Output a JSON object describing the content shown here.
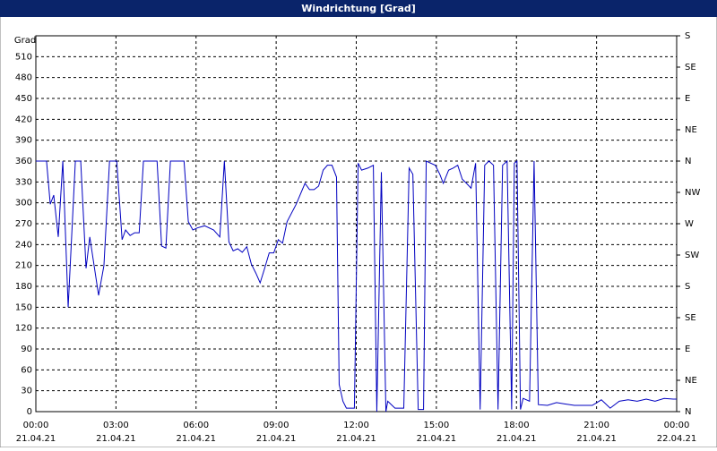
{
  "chart_data": {
    "type": "line",
    "title": "Windrichtung [Grad]",
    "y_label": "Grad",
    "x": [
      0,
      0.4,
      0.54,
      0.67,
      0.84,
      1.01,
      1.21,
      1.48,
      1.68,
      1.88,
      2.02,
      2.35,
      2.55,
      2.76,
      3.03,
      3.23,
      3.36,
      3.53,
      3.7,
      3.87,
      4.03,
      4.54,
      4.71,
      4.87,
      5.04,
      5.55,
      5.71,
      5.88,
      6.05,
      6.32,
      6.66,
      6.89,
      7.06,
      7.23,
      7.39,
      7.56,
      7.73,
      7.9,
      8.07,
      8.24,
      8.4,
      8.57,
      8.74,
      8.91,
      9.08,
      9.24,
      9.41,
      9.75,
      10.08,
      10.25,
      10.42,
      10.59,
      10.76,
      10.92,
      11.09,
      11.26,
      11.36,
      11.5,
      11.63,
      11.93,
      12.07,
      12.2,
      12.44,
      12.64,
      12.77,
      12.94,
      13.11,
      13.18,
      13.45,
      13.78,
      13.98,
      14.12,
      14.32,
      14.52,
      14.62,
      14.96,
      15.13,
      15.26,
      15.46,
      15.63,
      15.8,
      15.97,
      16.13,
      16.3,
      16.47,
      16.64,
      16.81,
      16.97,
      17.14,
      17.31,
      17.48,
      17.65,
      17.82,
      17.92,
      18.02,
      18.15,
      18.25,
      18.49,
      18.66,
      18.82,
      19.16,
      19.5,
      19.83,
      20.17,
      20.5,
      20.84,
      21.18,
      21.51,
      21.85,
      22.18,
      22.52,
      22.86,
      23.19,
      23.53,
      23.87,
      24.0
    ],
    "series": [
      {
        "name": "Windrichtung",
        "color": "#0000c0",
        "values": [
          360,
          360,
          298,
          311,
          251,
          360,
          150,
          360,
          360,
          206,
          251,
          167,
          210,
          360,
          360,
          247,
          261,
          253,
          257,
          257,
          360,
          360,
          238,
          235,
          360,
          360,
          273,
          261,
          264,
          267,
          261,
          251,
          360,
          244,
          231,
          234,
          229,
          237,
          212,
          199,
          185,
          206,
          228,
          228,
          247,
          242,
          273,
          298,
          328,
          319,
          319,
          324,
          347,
          354,
          354,
          337,
          39,
          15,
          5,
          5,
          357,
          347,
          350,
          354,
          0,
          344,
          0,
          15,
          5,
          5,
          350,
          341,
          3,
          3,
          360,
          354,
          341,
          328,
          347,
          350,
          354,
          334,
          328,
          321,
          357,
          3,
          354,
          360,
          354,
          3,
          354,
          360,
          3,
          357,
          360,
          3,
          19,
          15,
          360,
          10,
          9,
          13,
          11,
          9,
          9,
          9,
          17,
          5,
          15,
          17,
          15,
          18,
          15,
          19,
          18,
          18
        ]
      }
    ],
    "xlim": [
      0,
      24
    ],
    "xticks": [
      {
        "value": 0,
        "label": "00:00"
      },
      {
        "value": 3,
        "label": "03:00"
      },
      {
        "value": 6,
        "label": "06:00"
      },
      {
        "value": 9,
        "label": "09:00"
      },
      {
        "value": 12,
        "label": "12:00"
      },
      {
        "value": 15,
        "label": "15:00"
      },
      {
        "value": 18,
        "label": "18:00"
      },
      {
        "value": 21,
        "label": "21:00"
      },
      {
        "value": 24,
        "label": "00:00"
      }
    ],
    "xtick_dates": [
      "21.04.21",
      "21.04.21",
      "21.04.21",
      "21.04.21",
      "21.04.21",
      "21.04.21",
      "21.04.21",
      "21.04.21",
      "22.04.21"
    ],
    "ylim": [
      0,
      540
    ],
    "yticks": [
      0,
      30,
      60,
      90,
      120,
      150,
      180,
      210,
      240,
      270,
      300,
      330,
      360,
      390,
      420,
      450,
      480,
      510
    ],
    "y2lim": [
      0,
      540
    ],
    "y2ticks": [
      {
        "value": 0,
        "label": "N"
      },
      {
        "value": 45,
        "label": "NE"
      },
      {
        "value": 90,
        "label": "E"
      },
      {
        "value": 135,
        "label": "SE"
      },
      {
        "value": 180,
        "label": "S"
      },
      {
        "value": 225,
        "label": "SW"
      },
      {
        "value": 270,
        "label": "W"
      },
      {
        "value": 315,
        "label": "NW"
      },
      {
        "value": 360,
        "label": "N"
      },
      {
        "value": 405,
        "label": "NE"
      },
      {
        "value": 450,
        "label": "E"
      },
      {
        "value": 495,
        "label": "SE"
      },
      {
        "value": 540,
        "label": "S"
      }
    ],
    "grid": true
  }
}
